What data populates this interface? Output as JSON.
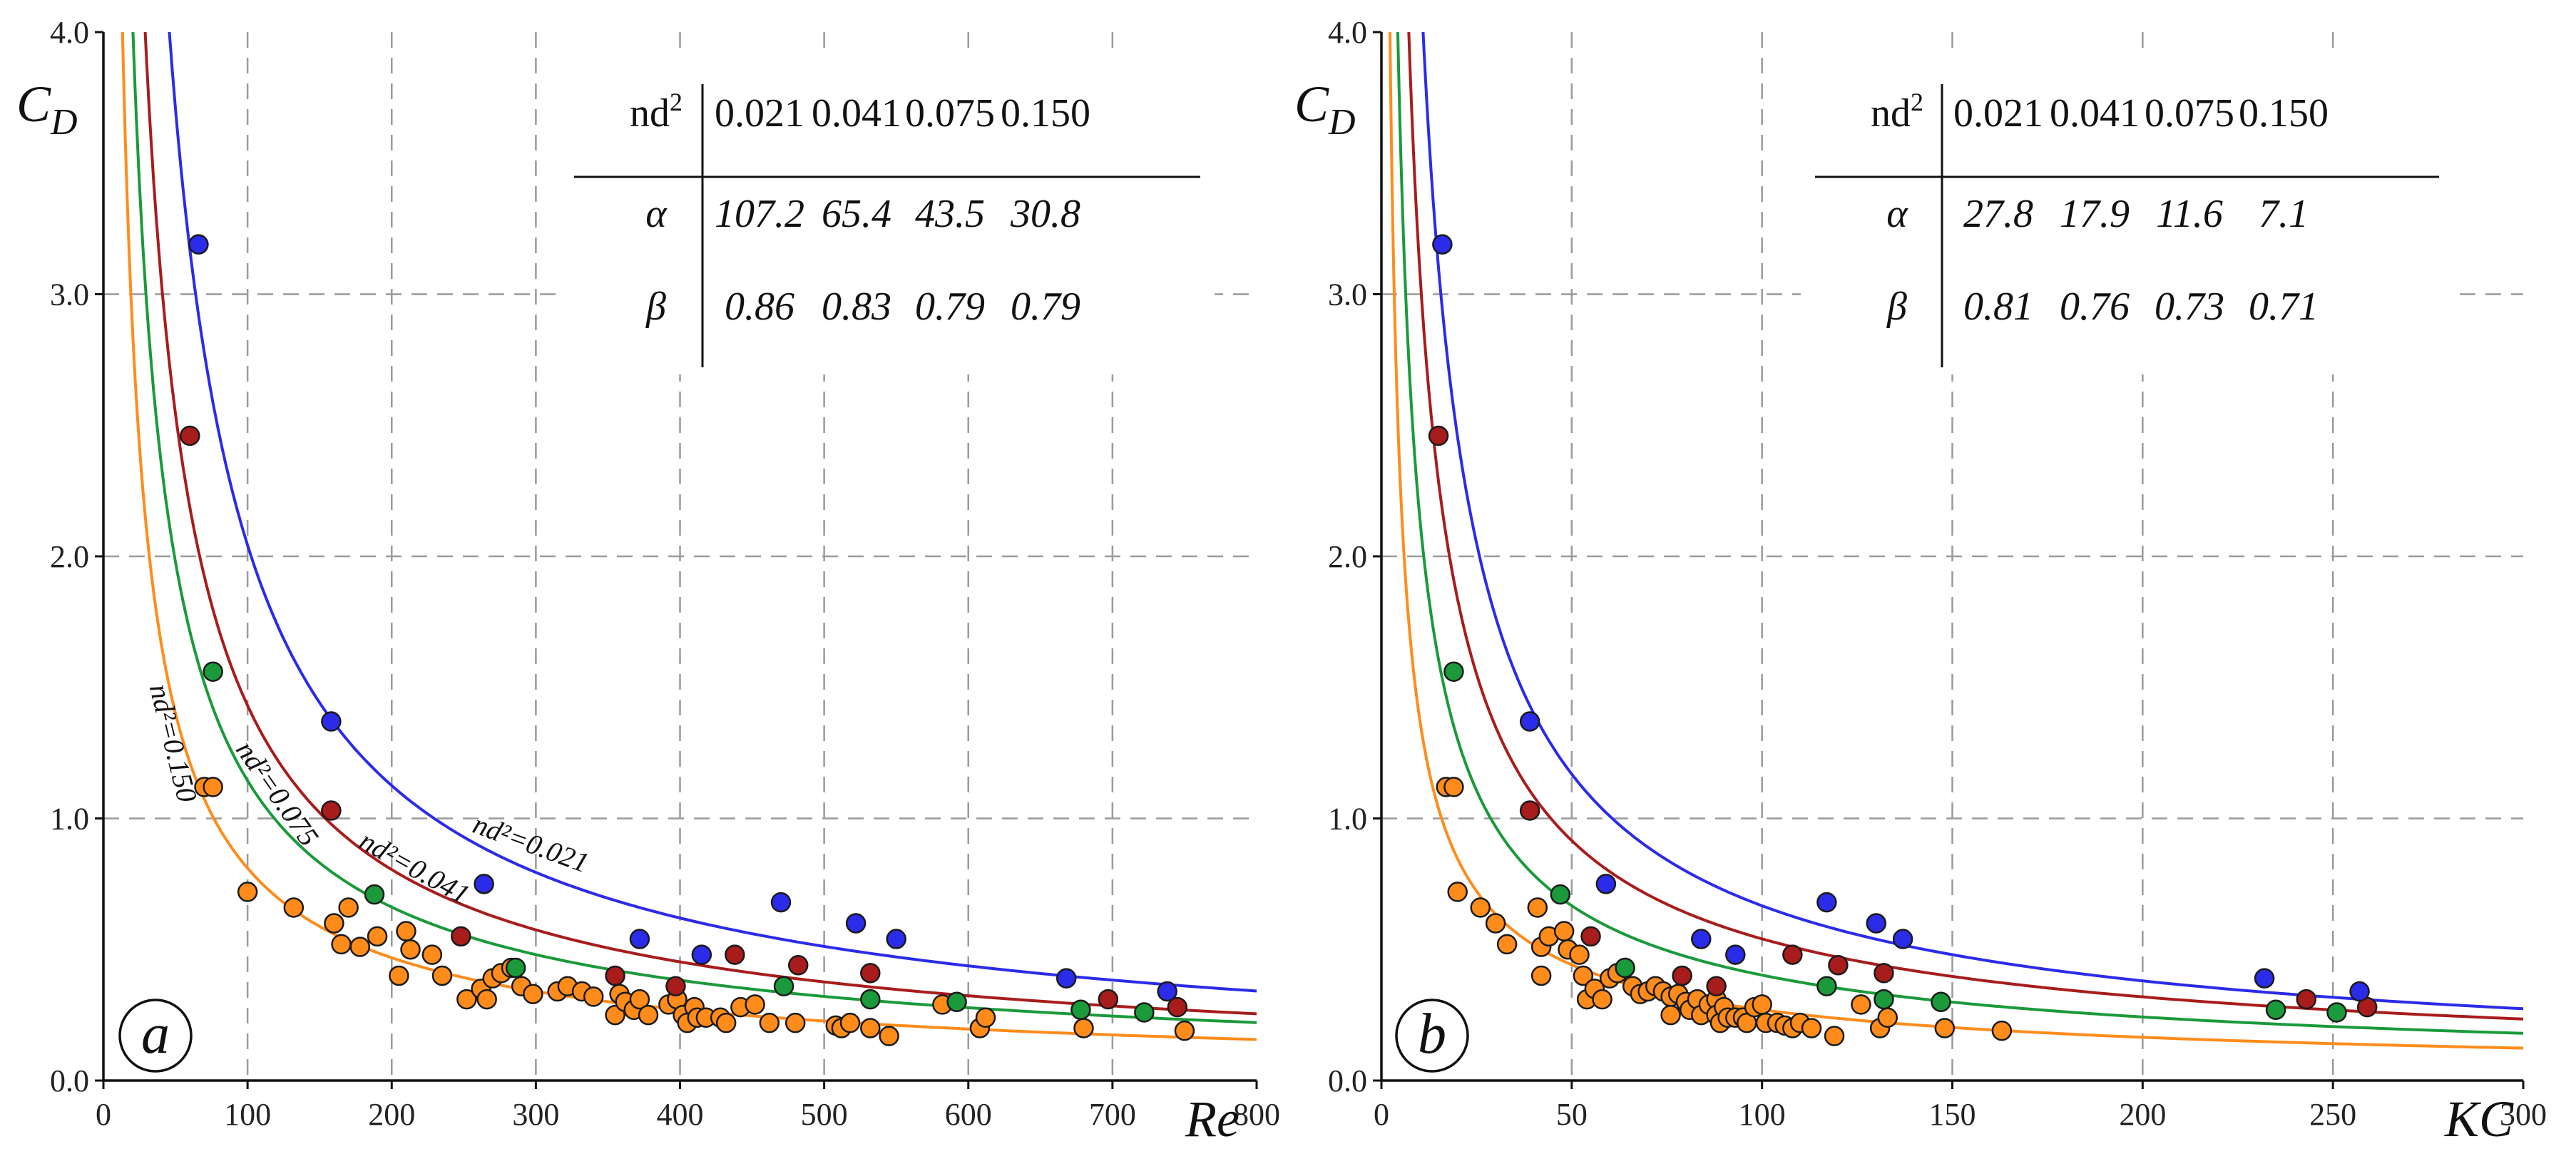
{
  "chart_data": [
    {
      "panel": "a",
      "type": "scatter",
      "xlabel": "Re",
      "ylabel": "C",
      "ylabel_sub": "D",
      "xlim": [
        0,
        800
      ],
      "ylim": [
        0,
        4
      ],
      "xticks": [
        "0",
        "100",
        "200",
        "300",
        "400",
        "500",
        "600",
        "700",
        "800"
      ],
      "yticks": [
        "0.0",
        "1.0",
        "2.0",
        "3.0",
        "4.0"
      ],
      "grid": true,
      "table": {
        "header": [
          "nd",
          "0.021",
          "0.041",
          "0.075",
          "0.150"
        ],
        "alpha_label": "α",
        "beta_label": "β",
        "alpha": [
          "107.2",
          "65.4",
          "43.5",
          "30.8"
        ],
        "beta": [
          "0.86",
          "0.83",
          "0.79",
          "0.79"
        ]
      },
      "curve_labels": [
        "nd²=0.021",
        "nd²=0.041",
        "nd²=0.075",
        "nd²=0.150"
      ],
      "series": [
        {
          "name": "nd2=0.021",
          "color": "#2b2bea",
          "alpha": 107.2,
          "beta": 0.86,
          "points": [
            [
              66,
              3.19
            ],
            [
              158,
              1.37
            ],
            [
              264,
              0.75
            ],
            [
              372,
              0.54
            ],
            [
              415,
              0.48
            ],
            [
              470,
              0.68
            ],
            [
              522,
              0.6
            ],
            [
              550,
              0.54
            ],
            [
              668,
              0.39
            ],
            [
              738,
              0.34
            ]
          ]
        },
        {
          "name": "nd2=0.041",
          "color": "#a81c1c",
          "alpha": 65.4,
          "beta": 0.83,
          "points": [
            [
              60,
              2.46
            ],
            [
              158,
              1.03
            ],
            [
              248,
              0.55
            ],
            [
              355,
              0.4
            ],
            [
              397,
              0.36
            ],
            [
              438,
              0.48
            ],
            [
              482,
              0.44
            ],
            [
              532,
              0.41
            ],
            [
              697,
              0.31
            ],
            [
              745,
              0.28
            ]
          ]
        },
        {
          "name": "nd2=0.075",
          "color": "#1a9a3a",
          "alpha": 43.5,
          "beta": 0.79,
          "points": [
            [
              76,
              1.56
            ],
            [
              188,
              0.71
            ],
            [
              286,
              0.43
            ],
            [
              472,
              0.36
            ],
            [
              532,
              0.31
            ],
            [
              592,
              0.3
            ],
            [
              678,
              0.27
            ],
            [
              722,
              0.26
            ]
          ]
        },
        {
          "name": "nd2=0.150",
          "color": "#ff8c1a",
          "alpha": 30.8,
          "beta": 0.79,
          "points": [
            [
              70,
              1.12
            ],
            [
              76,
              1.12
            ],
            [
              100,
              0.72
            ],
            [
              132,
              0.66
            ],
            [
              160,
              0.6
            ],
            [
              165,
              0.52
            ],
            [
              170,
              0.66
            ],
            [
              178,
              0.51
            ],
            [
              190,
              0.55
            ],
            [
              205,
              0.4
            ],
            [
              210,
              0.57
            ],
            [
              213,
              0.5
            ],
            [
              228,
              0.48
            ],
            [
              235,
              0.4
            ],
            [
              252,
              0.31
            ],
            [
              262,
              0.35
            ],
            [
              266,
              0.31
            ],
            [
              270,
              0.39
            ],
            [
              276,
              0.41
            ],
            [
              283,
              0.43
            ],
            [
              290,
              0.36
            ],
            [
              298,
              0.33
            ],
            [
              315,
              0.34
            ],
            [
              322,
              0.36
            ],
            [
              332,
              0.34
            ],
            [
              340,
              0.32
            ],
            [
              355,
              0.25
            ],
            [
              358,
              0.33
            ],
            [
              362,
              0.3
            ],
            [
              368,
              0.27
            ],
            [
              372,
              0.31
            ],
            [
              378,
              0.25
            ],
            [
              392,
              0.29
            ],
            [
              398,
              0.31
            ],
            [
              402,
              0.25
            ],
            [
              405,
              0.22
            ],
            [
              410,
              0.28
            ],
            [
              412,
              0.24
            ],
            [
              418,
              0.24
            ],
            [
              428,
              0.24
            ],
            [
              432,
              0.22
            ],
            [
              442,
              0.28
            ],
            [
              452,
              0.29
            ],
            [
              462,
              0.22
            ],
            [
              480,
              0.22
            ],
            [
              508,
              0.21
            ],
            [
              512,
              0.2
            ],
            [
              518,
              0.22
            ],
            [
              532,
              0.2
            ],
            [
              545,
              0.17
            ],
            [
              582,
              0.29
            ],
            [
              608,
              0.2
            ],
            [
              612,
              0.24
            ],
            [
              680,
              0.2
            ],
            [
              750,
              0.19
            ]
          ]
        }
      ]
    },
    {
      "panel": "b",
      "type": "scatter",
      "xlabel": "KC",
      "ylabel": "C",
      "ylabel_sub": "D",
      "xlim": [
        0,
        300
      ],
      "ylim": [
        0,
        4
      ],
      "xticks": [
        "0",
        "50",
        "100",
        "150",
        "200",
        "250",
        "300"
      ],
      "yticks": [
        "0.0",
        "1.0",
        "2.0",
        "3.0",
        "4.0"
      ],
      "grid": true,
      "table": {
        "header": [
          "nd",
          "0.021",
          "0.041",
          "0.075",
          "0.150"
        ],
        "alpha_label": "α",
        "beta_label": "β",
        "alpha": [
          "27.8",
          "17.9",
          "11.6",
          "7.1"
        ],
        "beta": [
          "0.81",
          "0.76",
          "0.73",
          "0.71"
        ]
      },
      "series": [
        {
          "name": "nd2=0.021",
          "color": "#2b2bea",
          "alpha": 27.8,
          "beta": 0.81,
          "points": [
            [
              16,
              3.19
            ],
            [
              39,
              1.37
            ],
            [
              59,
              0.75
            ],
            [
              84,
              0.54
            ],
            [
              93,
              0.48
            ],
            [
              117,
              0.68
            ],
            [
              130,
              0.6
            ],
            [
              137,
              0.54
            ],
            [
              232,
              0.39
            ],
            [
              257,
              0.34
            ]
          ]
        },
        {
          "name": "nd2=0.041",
          "color": "#a81c1c",
          "alpha": 17.9,
          "beta": 0.76,
          "points": [
            [
              15,
              2.46
            ],
            [
              39,
              1.03
            ],
            [
              55,
              0.55
            ],
            [
              79,
              0.4
            ],
            [
              88,
              0.36
            ],
            [
              108,
              0.48
            ],
            [
              120,
              0.44
            ],
            [
              132,
              0.41
            ],
            [
              243,
              0.31
            ],
            [
              259,
              0.28
            ]
          ]
        },
        {
          "name": "nd2=0.075",
          "color": "#1a9a3a",
          "alpha": 11.6,
          "beta": 0.73,
          "points": [
            [
              19,
              1.56
            ],
            [
              47,
              0.71
            ],
            [
              64,
              0.43
            ],
            [
              117,
              0.36
            ],
            [
              132,
              0.31
            ],
            [
              147,
              0.3
            ],
            [
              235,
              0.27
            ],
            [
              251,
              0.26
            ]
          ]
        },
        {
          "name": "nd2=0.150",
          "color": "#ff8c1a",
          "alpha": 7.1,
          "beta": 0.71,
          "points": [
            [
              17,
              1.12
            ],
            [
              19,
              1.12
            ],
            [
              20,
              0.72
            ],
            [
              26,
              0.66
            ],
            [
              30,
              0.6
            ],
            [
              33,
              0.52
            ],
            [
              41,
              0.66
            ],
            [
              42,
              0.51
            ],
            [
              44,
              0.55
            ],
            [
              42,
              0.4
            ],
            [
              48,
              0.57
            ],
            [
              49,
              0.5
            ],
            [
              52,
              0.48
            ],
            [
              53,
              0.4
            ],
            [
              54,
              0.31
            ],
            [
              56,
              0.35
            ],
            [
              58,
              0.31
            ],
            [
              60,
              0.39
            ],
            [
              62,
              0.41
            ],
            [
              64,
              0.43
            ],
            [
              66,
              0.36
            ],
            [
              68,
              0.33
            ],
            [
              70,
              0.34
            ],
            [
              72,
              0.36
            ],
            [
              74,
              0.34
            ],
            [
              76,
              0.32
            ],
            [
              76,
              0.25
            ],
            [
              78,
              0.33
            ],
            [
              80,
              0.3
            ],
            [
              81,
              0.27
            ],
            [
              83,
              0.31
            ],
            [
              84,
              0.25
            ],
            [
              86,
              0.29
            ],
            [
              88,
              0.31
            ],
            [
              88,
              0.25
            ],
            [
              89,
              0.22
            ],
            [
              90,
              0.28
            ],
            [
              91,
              0.24
            ],
            [
              93,
              0.24
            ],
            [
              95,
              0.24
            ],
            [
              96,
              0.22
            ],
            [
              98,
              0.28
            ],
            [
              100,
              0.29
            ],
            [
              101,
              0.22
            ],
            [
              104,
              0.22
            ],
            [
              106,
              0.21
            ],
            [
              108,
              0.2
            ],
            [
              110,
              0.22
            ],
            [
              113,
              0.2
            ],
            [
              119,
              0.17
            ],
            [
              126,
              0.29
            ],
            [
              131,
              0.2
            ],
            [
              133,
              0.24
            ],
            [
              148,
              0.2
            ],
            [
              163,
              0.19
            ]
          ]
        }
      ]
    }
  ]
}
